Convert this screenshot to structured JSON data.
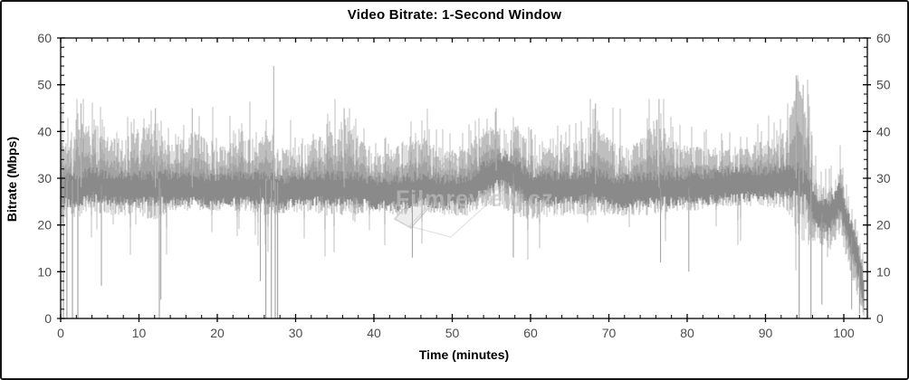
{
  "chart_data": {
    "type": "line",
    "title": "Video Bitrate: 1-Second Window",
    "xlabel": "Time (minutes)",
    "ylabel": "Bitrate (Mbps)",
    "xlim": [
      0,
      103
    ],
    "ylim": [
      0,
      60
    ],
    "x_major_ticks": [
      0,
      10,
      20,
      30,
      40,
      50,
      60,
      70,
      80,
      90,
      100
    ],
    "y_major_ticks": [
      0,
      10,
      20,
      30,
      40,
      50,
      60
    ],
    "x_minor_step": 2,
    "y_minor_step": 2,
    "grid": false,
    "legend": "none",
    "duration_minutes": 102.6,
    "baseline_mbps": 28,
    "max_spike_mbps": 54,
    "series": [
      {
        "name": "video-bitrate-1s-window",
        "color_core": "#8a8a8a",
        "color_mid": "#a3a3a3",
        "color_envelope": "#bfbfbf"
      }
    ],
    "envelope_profile_format": [
      "t_minutes",
      "low_mbps",
      "base_mbps",
      "high_mbps"
    ],
    "envelope_profile": [
      [
        0,
        20,
        28,
        40
      ],
      [
        1,
        21,
        27.5,
        36
      ],
      [
        2.5,
        22,
        28,
        42
      ],
      [
        4,
        23,
        29,
        41
      ],
      [
        6,
        22,
        28,
        38
      ],
      [
        9,
        22,
        28,
        40
      ],
      [
        12,
        21,
        28,
        42
      ],
      [
        14,
        23,
        28,
        37
      ],
      [
        17,
        23,
        28,
        40
      ],
      [
        20,
        23,
        27.5,
        37
      ],
      [
        23,
        23,
        28,
        38
      ],
      [
        26,
        22,
        28,
        40
      ],
      [
        28,
        22,
        27,
        36
      ],
      [
        31,
        23,
        28,
        37
      ],
      [
        34,
        22,
        28,
        40
      ],
      [
        37,
        22,
        28,
        41
      ],
      [
        40,
        23,
        27,
        35
      ],
      [
        43,
        22,
        27,
        37
      ],
      [
        46,
        23,
        28,
        39
      ],
      [
        49,
        22,
        27,
        36
      ],
      [
        52,
        22,
        27.5,
        37
      ],
      [
        54,
        24,
        30,
        40
      ],
      [
        56,
        24,
        32,
        41
      ],
      [
        58,
        22,
        31,
        41
      ],
      [
        60,
        21,
        28,
        38
      ],
      [
        63,
        22,
        28,
        37
      ],
      [
        66,
        22,
        28,
        38
      ],
      [
        68,
        22,
        29,
        42
      ],
      [
        71,
        22,
        27,
        37
      ],
      [
        74,
        22,
        27.5,
        38
      ],
      [
        76,
        22,
        28,
        43
      ],
      [
        78,
        23,
        28,
        38
      ],
      [
        81,
        23,
        28,
        37
      ],
      [
        84,
        24,
        28.5,
        36
      ],
      [
        87,
        24,
        29,
        37
      ],
      [
        90,
        24,
        29,
        38
      ],
      [
        92.5,
        23,
        29.5,
        40
      ],
      [
        94,
        18,
        30,
        50
      ],
      [
        95.5,
        15,
        28,
        48
      ],
      [
        96.5,
        17,
        23,
        29
      ],
      [
        98,
        14,
        22,
        28
      ],
      [
        99.5,
        18,
        26,
        31
      ],
      [
        100.5,
        12,
        20,
        27
      ],
      [
        101.5,
        6,
        15,
        21
      ],
      [
        102.2,
        2,
        9,
        15
      ],
      [
        102.6,
        0,
        4,
        9
      ]
    ],
    "zero_drop_minutes": [
      0.35,
      0.8,
      1.5,
      2.2,
      12.6,
      26.2,
      26.9,
      27.4,
      27.7,
      94.3,
      95.8
    ],
    "peak_events_format": [
      "t_minutes",
      "mbps"
    ],
    "peak_events": [
      [
        2.6,
        46
      ],
      [
        12.1,
        45
      ],
      [
        16.8,
        45
      ],
      [
        27.2,
        54
      ],
      [
        36.2,
        45
      ],
      [
        55.6,
        45
      ],
      [
        68.3,
        46
      ],
      [
        76.4,
        47
      ],
      [
        93.9,
        52
      ],
      [
        94.8,
        50
      ]
    ],
    "notable_lows": [
      [
        5.2,
        7
      ],
      [
        12.8,
        4
      ],
      [
        25.5,
        8
      ],
      [
        44.9,
        13
      ],
      [
        57.8,
        13
      ],
      [
        76.6,
        12
      ],
      [
        80.2,
        10
      ],
      [
        97.2,
        3
      ],
      [
        101.0,
        2
      ],
      [
        102.0,
        1
      ]
    ],
    "watermark": {
      "text": "Filmreview.cz",
      "color": "#c4c4c4"
    }
  },
  "colors": {
    "background": "#ffffff",
    "frame_border": "#141414",
    "axis": "#000000",
    "tick_label": "#4d4d4d",
    "title_text": "#000000"
  }
}
